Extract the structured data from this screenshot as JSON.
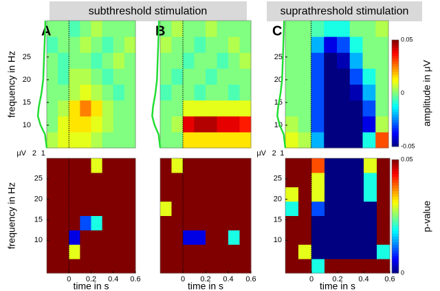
{
  "headers": [
    "subthreshold stimulation",
    "suprathreshold stimulation"
  ],
  "chart_data": [
    {
      "type": "heatmap",
      "panel": "A",
      "ylabel": "frequency in Hz",
      "colormap": "jet",
      "clim": [
        -0.05,
        0.05
      ],
      "xlim": [
        -0.2,
        0.6
      ],
      "ylim": [
        5,
        33
      ],
      "yticks": [
        10,
        15,
        20,
        25
      ],
      "marker_x": 0,
      "x": [
        -0.15,
        -0.05,
        0.05,
        0.15,
        0.25,
        0.35,
        0.45,
        0.55
      ],
      "y": [
        6.75,
        10.25,
        13.75,
        17.25,
        20.75,
        24.25,
        27.75,
        31.25
      ],
      "values": [
        [
          0.005,
          0.01,
          0.01,
          0.01,
          0.005,
          0,
          0,
          0
        ],
        [
          0,
          0.01,
          0.015,
          0.015,
          0.01,
          0.005,
          0,
          0
        ],
        [
          0,
          0.005,
          0.015,
          0.025,
          0.015,
          0.005,
          0,
          0
        ],
        [
          0,
          0,
          0.005,
          0.01,
          0.005,
          0,
          -0.005,
          0
        ],
        [
          0,
          -0.005,
          0.005,
          0.005,
          0,
          -0.005,
          0,
          0
        ],
        [
          0,
          -0.005,
          0,
          0,
          -0.005,
          0,
          0.005,
          0
        ],
        [
          -0.005,
          0,
          0,
          0.005,
          0,
          -0.005,
          0,
          0.005
        ],
        [
          0,
          0,
          -0.005,
          0,
          0.005,
          0,
          0,
          0
        ]
      ],
      "spectrum": {
        "color": "#22dd33",
        "xlabel": "μV",
        "xlim": [
          2.15,
          0.6
        ],
        "xticks": [
          2,
          1
        ],
        "y": [
          5,
          8,
          10,
          12,
          14,
          17,
          20,
          25,
          30,
          33
        ],
        "values": [
          0.6,
          0.8,
          1.3,
          1.6,
          1.5,
          1.2,
          1.0,
          0.9,
          0.8,
          0.75
        ]
      }
    },
    {
      "type": "heatmap",
      "panel": "B",
      "colormap": "jet",
      "clim": [
        -0.05,
        0.05
      ],
      "xlim": [
        -0.2,
        0.6
      ],
      "ylim": [
        5,
        33
      ],
      "marker_x": 0,
      "x": [
        -0.15,
        -0.05,
        0.05,
        0.15,
        0.25,
        0.35,
        0.45,
        0.55
      ],
      "y": [
        6.75,
        10.25,
        13.75,
        17.25,
        20.75,
        24.25,
        27.75,
        31.25
      ],
      "values": [
        [
          0,
          0,
          0.015,
          0.015,
          0.015,
          0.015,
          0.015,
          0.015
        ],
        [
          0,
          0.005,
          0.04,
          0.045,
          0.045,
          0.04,
          0.04,
          0.035
        ],
        [
          0,
          0,
          0.01,
          0.01,
          0.01,
          0.01,
          0.01,
          0.01
        ],
        [
          -0.005,
          0,
          0,
          -0.005,
          0,
          0,
          -0.005,
          0
        ],
        [
          0,
          -0.005,
          0,
          0,
          -0.005,
          0,
          0,
          0
        ],
        [
          0,
          0,
          -0.005,
          0,
          0,
          -0.005,
          0,
          0.005
        ],
        [
          0.005,
          0,
          0,
          -0.005,
          0,
          0,
          0.005,
          0
        ],
        [
          0,
          0.005,
          0,
          0,
          0.005,
          0,
          0,
          0
        ]
      ],
      "spectrum": {
        "color": "#22dd33",
        "xlim": [
          2.15,
          0.6
        ],
        "y": [
          5,
          8,
          10,
          12,
          14,
          17,
          20,
          25,
          30,
          33
        ],
        "values": [
          0.6,
          0.8,
          1.3,
          1.6,
          1.5,
          1.2,
          1.0,
          0.9,
          0.8,
          0.75
        ]
      }
    },
    {
      "type": "heatmap",
      "panel": "C",
      "colormap": "jet",
      "clim": [
        -0.05,
        0.05
      ],
      "xlim": [
        -0.2,
        0.6
      ],
      "ylim": [
        5,
        33
      ],
      "yticks": [
        10,
        15,
        20,
        25
      ],
      "marker_x": 0,
      "colorbar": {
        "label": "amplitude in μV",
        "lim": [
          -0.05,
          0.05
        ],
        "ticks": [
          0.05,
          0,
          -0.05
        ]
      },
      "x": [
        -0.15,
        -0.05,
        0.05,
        0.15,
        0.25,
        0.35,
        0.45,
        0.55
      ],
      "y": [
        6.75,
        10.25,
        13.75,
        17.25,
        20.75,
        24.25,
        27.75,
        31.25
      ],
      "values": [
        [
          0.01,
          0.005,
          -0.02,
          -0.05,
          -0.05,
          -0.05,
          -0.01,
          0.03
        ],
        [
          0.005,
          0,
          -0.03,
          -0.05,
          -0.05,
          -0.05,
          -0.04,
          0.005
        ],
        [
          0,
          0,
          -0.03,
          -0.05,
          -0.05,
          -0.05,
          -0.03,
          0
        ],
        [
          0,
          0,
          -0.03,
          -0.05,
          -0.05,
          -0.045,
          -0.02,
          0
        ],
        [
          0,
          0,
          -0.03,
          -0.05,
          -0.05,
          -0.03,
          -0.01,
          0
        ],
        [
          0,
          0,
          -0.03,
          -0.05,
          -0.045,
          -0.02,
          0,
          0
        ],
        [
          0,
          0,
          -0.02,
          -0.04,
          -0.03,
          -0.01,
          0,
          0
        ],
        [
          0,
          0,
          -0.005,
          -0.01,
          -0.01,
          0,
          0,
          0.005
        ]
      ],
      "spectrum": {
        "color": "#22dd33",
        "xlabel": "μV",
        "xlim": [
          2.15,
          0.6
        ],
        "xticks": [
          2,
          1
        ],
        "y": [
          5,
          8,
          10,
          12,
          14,
          17,
          20,
          25,
          30,
          33
        ],
        "values": [
          0.6,
          0.8,
          1.3,
          1.6,
          1.5,
          1.2,
          1.0,
          0.9,
          0.8,
          0.75
        ]
      }
    },
    {
      "type": "heatmap",
      "ylabel": "frequency in Hz",
      "xlabel": "time in s",
      "colormap": "jet",
      "clim": [
        0,
        0.05
      ],
      "xlim": [
        -0.2,
        0.6
      ],
      "ylim": [
        2,
        30
      ],
      "xticks": [
        0,
        0.2,
        0.4,
        0.6
      ],
      "yticks": [
        10,
        15,
        20,
        25
      ],
      "marker_x": 0,
      "x": [
        -0.15,
        -0.05,
        0.05,
        0.15,
        0.25,
        0.35,
        0.45,
        0.55
      ],
      "y": [
        3.75,
        7.25,
        10.75,
        14.25,
        17.75,
        21.25,
        24.75,
        28.25
      ],
      "values": [
        [
          0.05,
          0.05,
          0.05,
          0.05,
          0.05,
          0.05,
          0.05,
          0.05
        ],
        [
          0.05,
          0.05,
          0.03,
          0.05,
          0.05,
          0.05,
          0.05,
          0.05
        ],
        [
          0.05,
          0.05,
          0.005,
          0.05,
          0.05,
          0.05,
          0.05,
          0.05
        ],
        [
          0.05,
          0.05,
          0.05,
          0.01,
          0.02,
          0.05,
          0.05,
          0.05
        ],
        [
          0.05,
          0.05,
          0.05,
          0.05,
          0.05,
          0.05,
          0.05,
          0.05
        ],
        [
          0.05,
          0.05,
          0.05,
          0.05,
          0.05,
          0.05,
          0.05,
          0.05
        ],
        [
          0.05,
          0.05,
          0.05,
          0.05,
          0.05,
          0.05,
          0.05,
          0.05
        ],
        [
          0.05,
          0.05,
          0.05,
          0.05,
          0.03,
          0.05,
          0.05,
          0.05
        ]
      ]
    },
    {
      "type": "heatmap",
      "xlabel": "time in s",
      "colormap": "jet",
      "clim": [
        0,
        0.05
      ],
      "xlim": [
        -0.2,
        0.6
      ],
      "ylim": [
        2,
        30
      ],
      "xticks": [
        0,
        0.2,
        0.4,
        0.6
      ],
      "marker_x": 0,
      "x": [
        -0.15,
        -0.05,
        0.05,
        0.15,
        0.25,
        0.35,
        0.45,
        0.55
      ],
      "y": [
        3.75,
        7.25,
        10.75,
        14.25,
        17.75,
        21.25,
        24.75,
        28.25
      ],
      "values": [
        [
          0.05,
          0.05,
          0.05,
          0.05,
          0.05,
          0.05,
          0.05,
          0.05
        ],
        [
          0.05,
          0.05,
          0.05,
          0.05,
          0.05,
          0.05,
          0.05,
          0.05
        ],
        [
          0.05,
          0.05,
          0.005,
          0.005,
          0.05,
          0.05,
          0.02,
          0.05
        ],
        [
          0.05,
          0.05,
          0.05,
          0.05,
          0.05,
          0.05,
          0.05,
          0.05
        ],
        [
          0.03,
          0.05,
          0.05,
          0.05,
          0.05,
          0.05,
          0.05,
          0.05
        ],
        [
          0.05,
          0.05,
          0.05,
          0.05,
          0.05,
          0.05,
          0.05,
          0.05
        ],
        [
          0.05,
          0.05,
          0.05,
          0.05,
          0.05,
          0.05,
          0.05,
          0.05
        ],
        [
          0.05,
          0.03,
          0.05,
          0.05,
          0.05,
          0.05,
          0.05,
          0.05
        ]
      ]
    },
    {
      "type": "heatmap",
      "xlabel": "time in s",
      "colormap": "jet",
      "clim": [
        0,
        0.05
      ],
      "xlim": [
        -0.2,
        0.6
      ],
      "ylim": [
        2,
        30
      ],
      "xticks": [
        0,
        0.2,
        0.4,
        0.6
      ],
      "yticks": [
        10,
        15,
        20,
        25
      ],
      "marker_x": 0,
      "colorbar": {
        "label": "p-value",
        "lim": [
          0,
          0.05
        ],
        "ticks": [
          0.05,
          0
        ]
      },
      "x": [
        -0.15,
        -0.05,
        0.05,
        0.15,
        0.25,
        0.35,
        0.45,
        0.55
      ],
      "y": [
        3.75,
        7.25,
        10.75,
        14.25,
        17.75,
        21.25,
        24.75,
        28.25
      ],
      "values": [
        [
          0.05,
          0.05,
          0.02,
          0.05,
          0.05,
          0.05,
          0.05,
          0.05
        ],
        [
          0.05,
          0.03,
          0,
          0,
          0,
          0,
          0,
          0.02
        ],
        [
          0.05,
          0.05,
          0,
          0,
          0,
          0,
          0,
          0.05
        ],
        [
          0.05,
          0.05,
          0,
          0,
          0,
          0,
          0,
          0.05
        ],
        [
          0.02,
          0.05,
          0.01,
          0,
          0,
          0,
          0,
          0.05
        ],
        [
          0.03,
          0.05,
          0.03,
          0,
          0,
          0,
          0.02,
          0.05
        ],
        [
          0.05,
          0.05,
          0.03,
          0,
          0,
          0,
          0.02,
          0.05
        ],
        [
          0.05,
          0.05,
          0.04,
          0,
          0,
          0,
          0.03,
          0.05
        ]
      ]
    }
  ]
}
